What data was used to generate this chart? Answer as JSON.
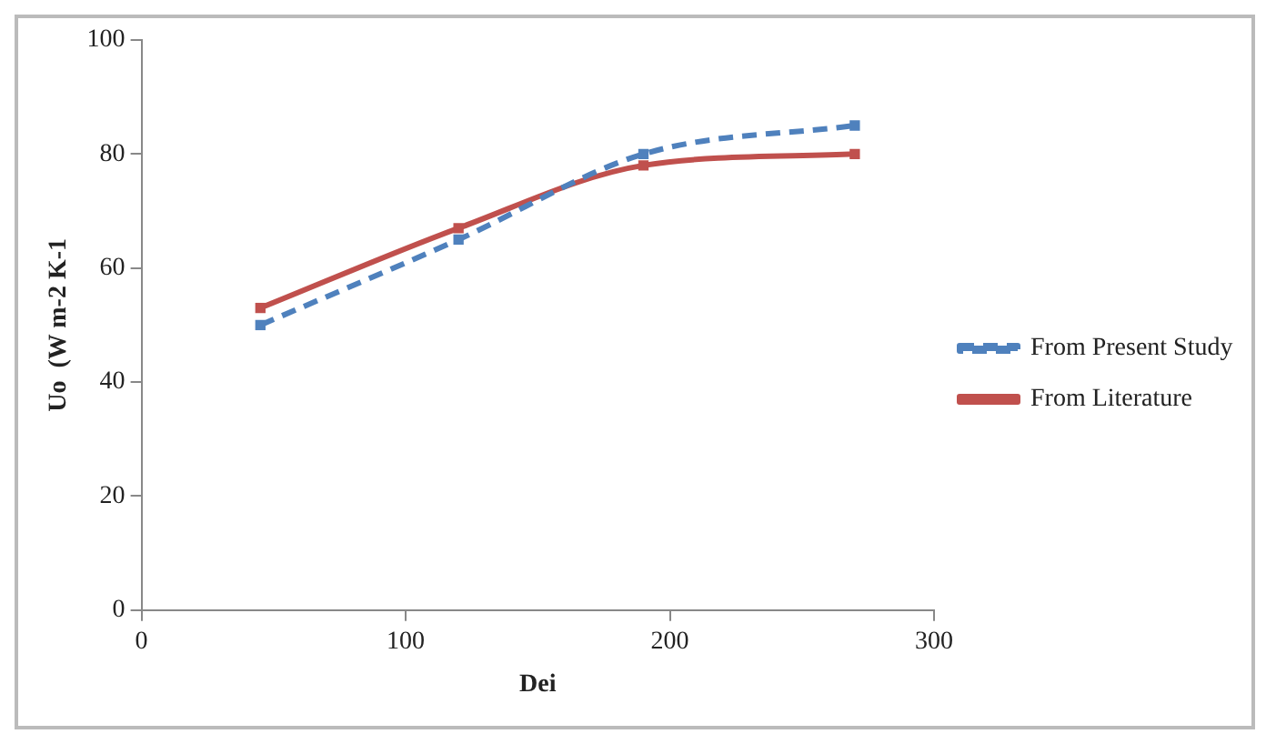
{
  "chart_data": {
    "type": "line",
    "xlabel": "Dei",
    "ylabel": "Uo  (W m-2 K-1",
    "x": [
      45,
      120,
      190,
      270
    ],
    "series": [
      {
        "name": "From Present Study",
        "color": "#4f81bd",
        "values": [
          50,
          65,
          80,
          85
        ],
        "line_style": "dashed"
      },
      {
        "name": "From Literature",
        "color": "#c0504d",
        "values": [
          53,
          67,
          78,
          80
        ],
        "line_style": "solid"
      }
    ],
    "xlim": [
      0,
      300
    ],
    "xticks": [
      0,
      100,
      200,
      300
    ],
    "ylim": [
      0,
      100
    ],
    "yticks": [
      0,
      20,
      40,
      60,
      80,
      100
    ],
    "grid": false,
    "legend": "right",
    "marker": "square"
  }
}
